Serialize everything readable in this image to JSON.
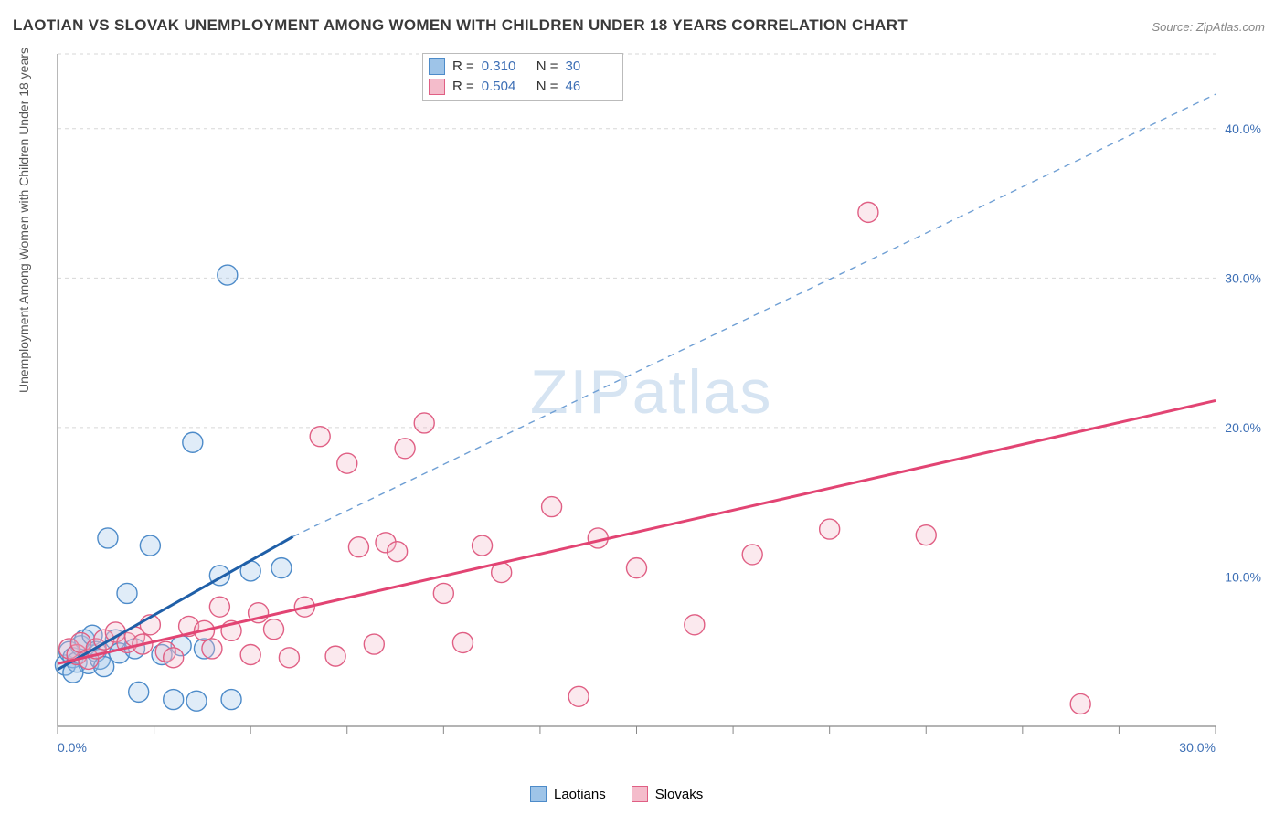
{
  "title": "LAOTIAN VS SLOVAK UNEMPLOYMENT AMONG WOMEN WITH CHILDREN UNDER 18 YEARS CORRELATION CHART",
  "source": "Source: ZipAtlas.com",
  "y_axis_label": "Unemployment Among Women with Children Under 18 years",
  "watermark": "ZIPatlas",
  "chart": {
    "type": "scatter",
    "background_color": "#ffffff",
    "grid_color": "#d7d7d7",
    "grid_dash": "4,4",
    "axis_color": "#888888",
    "xlim": [
      0,
      30
    ],
    "ylim": [
      0,
      45
    ],
    "x_ticks": [
      0,
      2.5,
      5,
      7.5,
      10,
      12.5,
      15,
      17.5,
      20,
      22.5,
      25,
      27.5,
      30
    ],
    "x_tick_labels": [
      {
        "pos": 0,
        "label": "0.0%"
      },
      {
        "pos": 30,
        "label": "30.0%"
      }
    ],
    "y_grid_lines": [
      10,
      20,
      30,
      40,
      45
    ],
    "y_tick_labels": [
      {
        "pos": 10,
        "label": "10.0%"
      },
      {
        "pos": 20,
        "label": "20.0%"
      },
      {
        "pos": 30,
        "label": "30.0%"
      },
      {
        "pos": 40,
        "label": "40.0%"
      }
    ],
    "marker_radius": 11,
    "marker_fill_opacity": 0.32,
    "marker_stroke_width": 1.4,
    "series": [
      {
        "name": "Laotians",
        "color_fill": "#9ec4e8",
        "color_stroke": "#4d8bc9",
        "r_value": "0.310",
        "n_value": "30",
        "trend_solid": {
          "x1": 0,
          "y1": 3.8,
          "x2": 6.1,
          "y2": 12.7,
          "color": "#1f5fa8",
          "width": 3
        },
        "trend_dashed": {
          "x1": 6.1,
          "y1": 12.7,
          "x2": 30,
          "y2": 42.3,
          "color": "#6f9fd4",
          "width": 1.4,
          "dash": "7,6"
        },
        "points": [
          [
            0.2,
            4.1
          ],
          [
            0.3,
            5.0
          ],
          [
            0.4,
            4.6
          ],
          [
            0.5,
            4.3
          ],
          [
            0.6,
            5.4
          ],
          [
            0.7,
            5.8
          ],
          [
            0.8,
            4.2
          ],
          [
            0.9,
            6.1
          ],
          [
            1.0,
            5.0
          ],
          [
            1.1,
            4.5
          ],
          [
            1.2,
            4.0
          ],
          [
            1.3,
            12.6
          ],
          [
            1.5,
            5.8
          ],
          [
            1.6,
            4.9
          ],
          [
            1.8,
            8.9
          ],
          [
            2.0,
            5.2
          ],
          [
            2.1,
            2.3
          ],
          [
            2.4,
            12.1
          ],
          [
            2.7,
            4.8
          ],
          [
            3.0,
            1.8
          ],
          [
            3.2,
            5.4
          ],
          [
            3.5,
            19.0
          ],
          [
            3.6,
            1.7
          ],
          [
            3.8,
            5.2
          ],
          [
            4.2,
            10.1
          ],
          [
            4.4,
            30.2
          ],
          [
            4.5,
            1.8
          ],
          [
            5.0,
            10.4
          ],
          [
            5.8,
            10.6
          ],
          [
            0.4,
            3.6
          ]
        ]
      },
      {
        "name": "Slovaks",
        "color_fill": "#f4bccb",
        "color_stroke": "#e05f84",
        "r_value": "0.504",
        "n_value": "46",
        "trend_solid": {
          "x1": 0,
          "y1": 4.2,
          "x2": 30,
          "y2": 21.8,
          "color": "#e24473",
          "width": 3
        },
        "trend_dashed": null,
        "points": [
          [
            0.3,
            5.2
          ],
          [
            0.5,
            4.8
          ],
          [
            0.6,
            5.6
          ],
          [
            0.8,
            4.5
          ],
          [
            1.0,
            5.2
          ],
          [
            1.2,
            5.8
          ],
          [
            1.5,
            6.3
          ],
          [
            1.8,
            5.6
          ],
          [
            2.0,
            6.0
          ],
          [
            2.4,
            6.8
          ],
          [
            2.8,
            5.0
          ],
          [
            3.0,
            4.6
          ],
          [
            3.4,
            6.7
          ],
          [
            3.8,
            6.4
          ],
          [
            4.2,
            8.0
          ],
          [
            4.5,
            6.4
          ],
          [
            5.0,
            4.8
          ],
          [
            5.2,
            7.6
          ],
          [
            5.6,
            6.5
          ],
          [
            6.0,
            4.6
          ],
          [
            6.4,
            8.0
          ],
          [
            6.8,
            19.4
          ],
          [
            7.2,
            4.7
          ],
          [
            7.5,
            17.6
          ],
          [
            7.8,
            12.0
          ],
          [
            8.2,
            5.5
          ],
          [
            8.5,
            12.3
          ],
          [
            8.8,
            11.7
          ],
          [
            9.0,
            18.6
          ],
          [
            9.5,
            20.3
          ],
          [
            10.0,
            8.9
          ],
          [
            10.5,
            5.6
          ],
          [
            11.0,
            12.1
          ],
          [
            11.5,
            10.3
          ],
          [
            12.8,
            14.7
          ],
          [
            13.5,
            2.0
          ],
          [
            14.0,
            12.6
          ],
          [
            15.0,
            10.6
          ],
          [
            16.5,
            6.8
          ],
          [
            18.0,
            11.5
          ],
          [
            20.0,
            13.2
          ],
          [
            21.0,
            34.4
          ],
          [
            22.5,
            12.8
          ],
          [
            26.5,
            1.5
          ],
          [
            4.0,
            5.2
          ],
          [
            2.2,
            5.5
          ]
        ]
      }
    ]
  },
  "stats_legend": {
    "r_label": "R  =",
    "n_label": "N  ="
  },
  "bottom_legend": [
    {
      "swatch_fill": "#9ec4e8",
      "swatch_stroke": "#4d8bc9",
      "label": "Laotians"
    },
    {
      "swatch_fill": "#f4bccb",
      "swatch_stroke": "#e05f84",
      "label": "Slovaks"
    }
  ]
}
